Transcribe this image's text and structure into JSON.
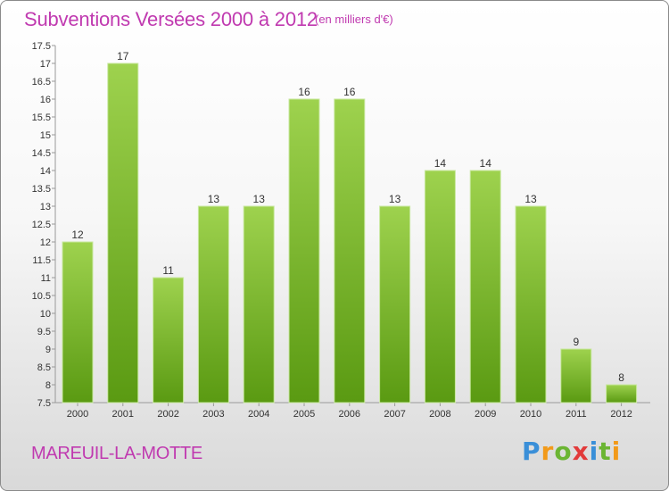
{
  "header": {
    "title": "Subventions Versées 2000 à 2012",
    "unit": "(en milliers d'€)"
  },
  "footer": {
    "commune": "MAREUIL-LA-MOTTE",
    "logo_text": "Proxiti"
  },
  "colors": {
    "title": "#c03ab0",
    "bar_top": "#9ed24e",
    "bar_bottom": "#5a9a12"
  },
  "chart_data": {
    "type": "bar",
    "title": "Subventions Versées 2000 à 2012",
    "ylabel": "(en milliers d'€)",
    "xlabel": "",
    "categories": [
      "2000",
      "2001",
      "2002",
      "2003",
      "2004",
      "2005",
      "2006",
      "2007",
      "2008",
      "2009",
      "2010",
      "2011",
      "2012"
    ],
    "values": [
      12,
      17,
      11,
      13,
      13,
      16,
      16,
      13,
      14,
      14,
      13,
      9,
      8
    ],
    "ylim": [
      7.5,
      17.5
    ],
    "yticks": [
      7.5,
      8,
      8.5,
      9,
      9.5,
      10,
      10.5,
      11,
      11.5,
      12,
      12.5,
      13,
      13.5,
      14,
      14.5,
      15,
      15.5,
      16,
      16.5,
      17,
      17.5
    ],
    "grid": false,
    "legend": "none"
  }
}
